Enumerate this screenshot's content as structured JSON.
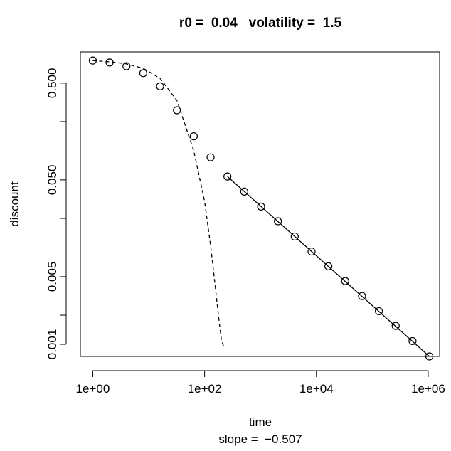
{
  "chart_data": {
    "type": "scatter",
    "title": "r0 =  0.04   volatility =  1.5",
    "xlabel": "time",
    "ylabel": "discount",
    "subtitle": "slope =  −0.507",
    "x_scale": "log",
    "y_scale": "log",
    "xlim": [
      0.6,
      1600000
    ],
    "ylim": [
      0.00075,
      1.05
    ],
    "x_ticks": [
      1,
      100,
      10000,
      1000000
    ],
    "x_tick_labels": [
      "1e+00",
      "1e+02",
      "1e+04",
      "1e+06"
    ],
    "y_ticks": [
      0.001,
      0.005,
      0.05,
      0.5
    ],
    "y_tick_labels": [
      "0.001",
      "0.005",
      "0.050",
      "0.500"
    ],
    "y_minor_ticks": [
      0.002,
      0.02,
      0.2
    ],
    "grid": false,
    "legend": "none",
    "series": [
      {
        "style": "points",
        "x": [
          1,
          2,
          4,
          8,
          16,
          32,
          64,
          128,
          256,
          512,
          1024,
          2048,
          4096,
          8192,
          16384,
          32768,
          65536,
          131072,
          262144,
          524288,
          1048576
        ],
        "y": [
          0.855,
          0.816,
          0.748,
          0.634,
          0.463,
          0.262,
          0.141,
          0.0855,
          0.0542,
          0.0378,
          0.0265,
          0.0187,
          0.013,
          0.0091,
          0.0064,
          0.0045,
          0.00315,
          0.0022,
          0.00155,
          0.00108,
          0.00075
        ]
      },
      {
        "style": "dashed-line",
        "x": [
          1,
          2,
          4,
          8,
          16,
          32,
          64,
          100,
          128,
          150,
          175,
          200,
          220
        ],
        "y": [
          0.853,
          0.83,
          0.79,
          0.71,
          0.56,
          0.33,
          0.1,
          0.03,
          0.0105,
          0.0047,
          0.0021,
          0.0011,
          0.00095
        ]
      },
      {
        "style": "solid-line",
        "x": [
          256,
          1048576
        ],
        "y": [
          0.0542,
          0.00075
        ]
      }
    ]
  }
}
